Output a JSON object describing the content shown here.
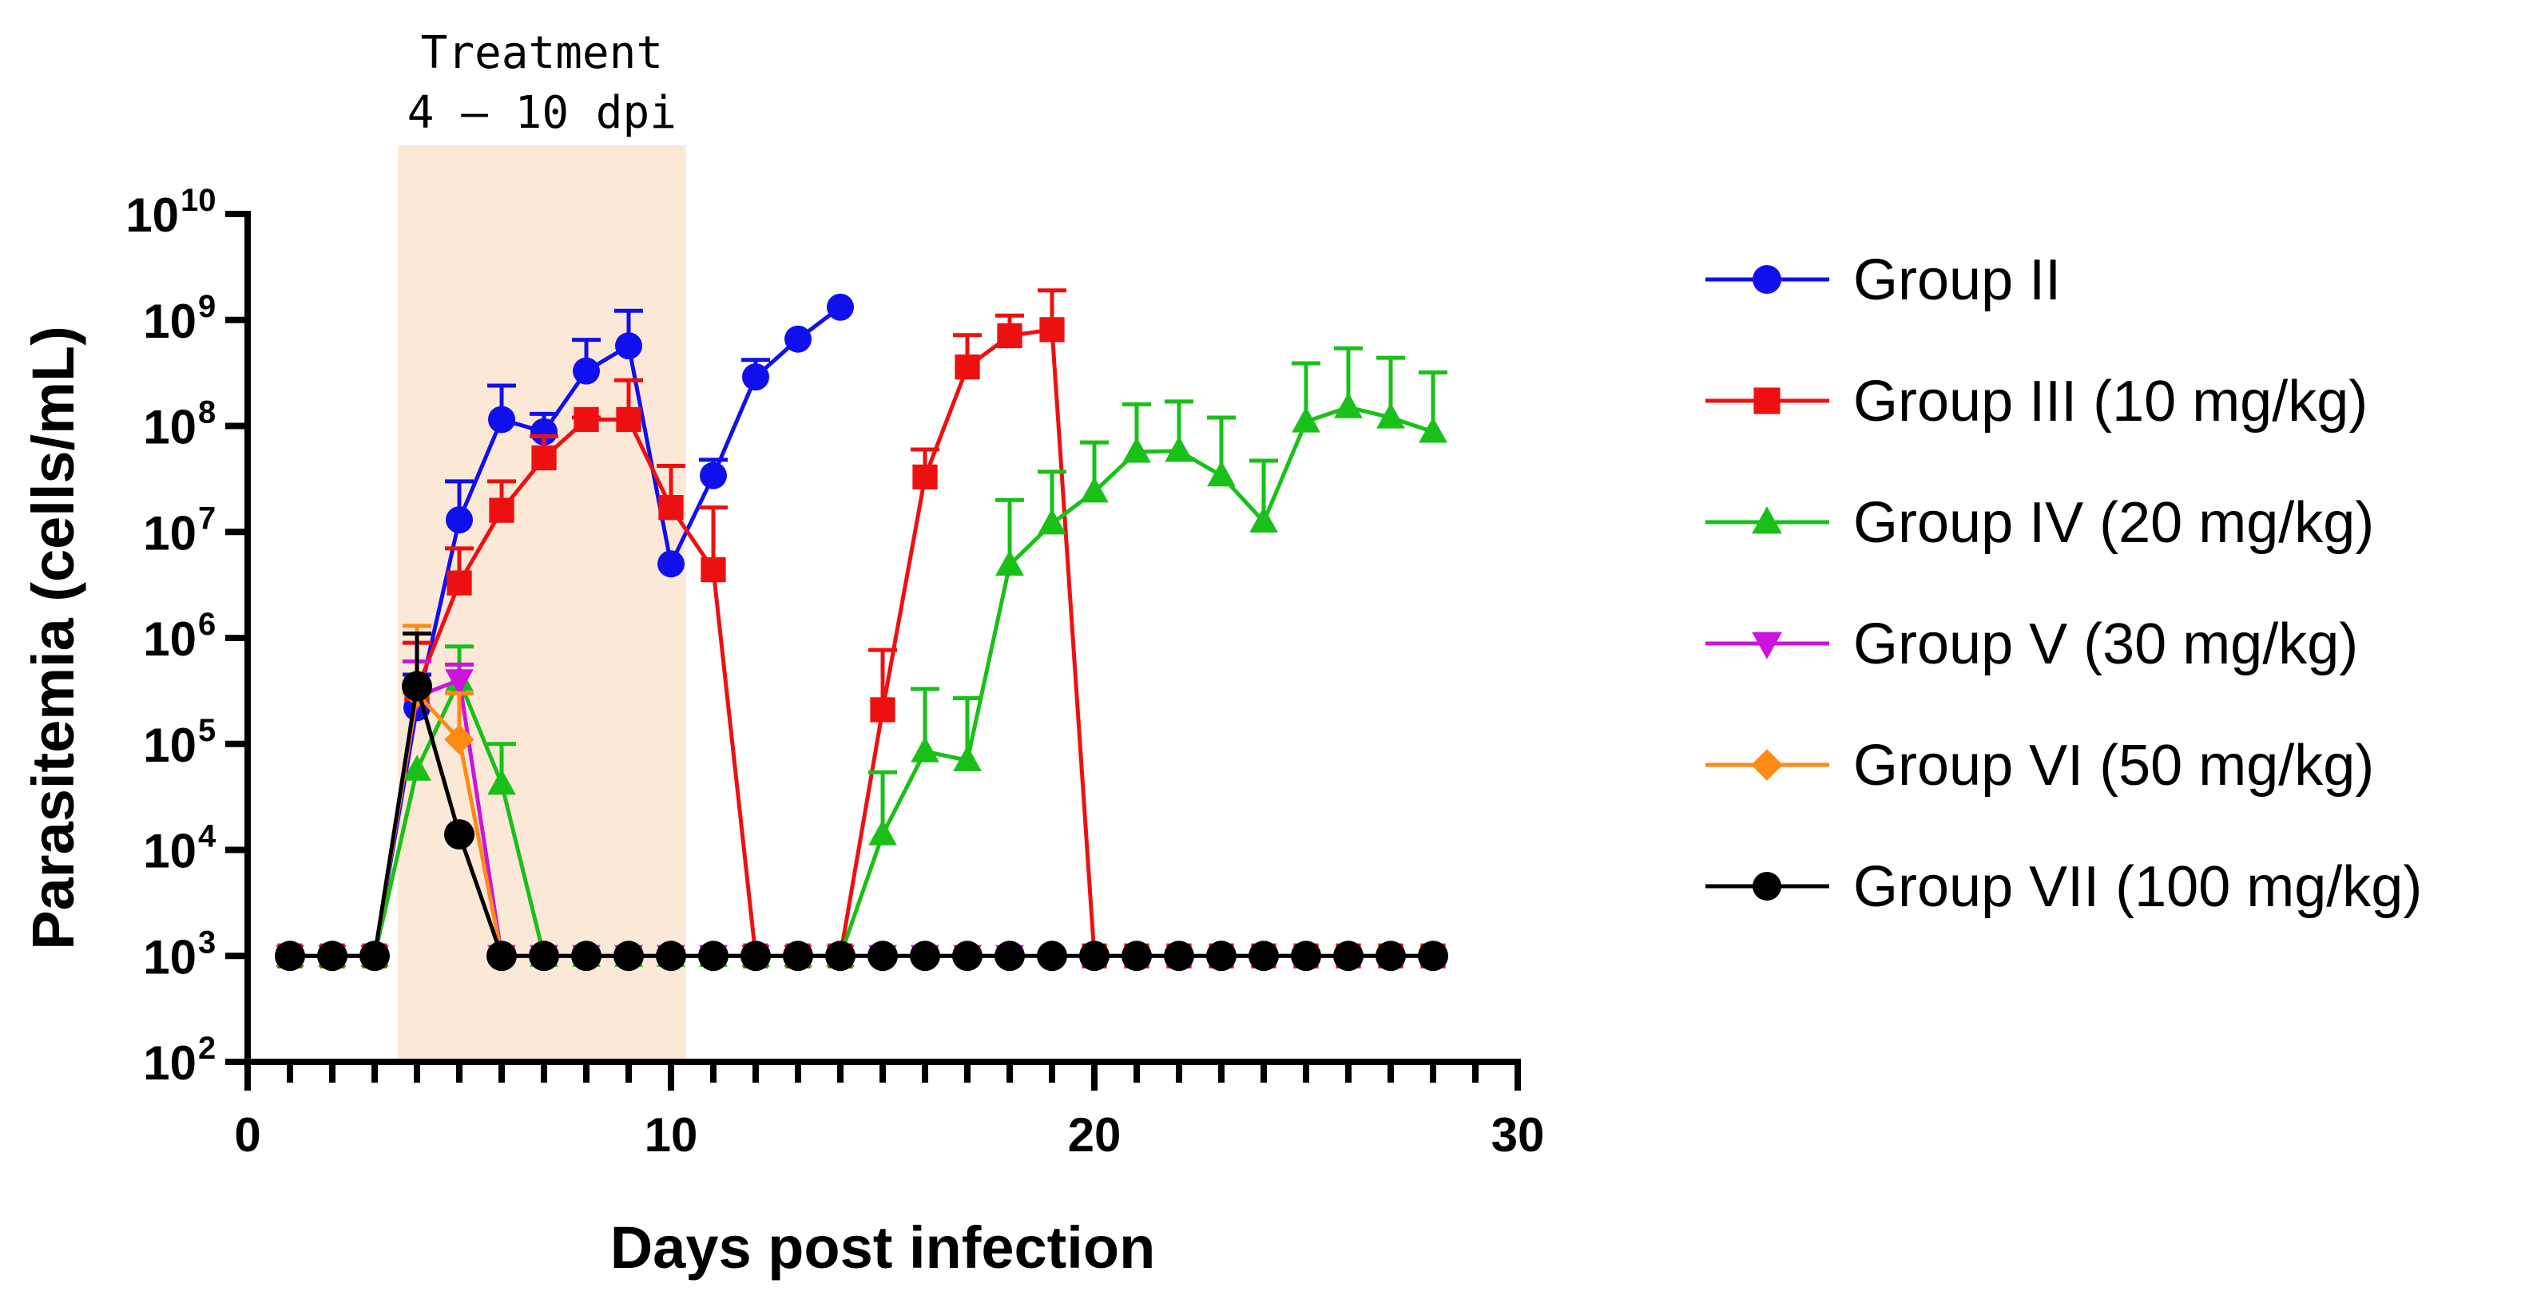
{
  "chart_data": {
    "type": "line",
    "title": "",
    "xlabel": "Days post infection",
    "ylabel": "Parasitemia (cells/mL)",
    "xlim": [
      0,
      30
    ],
    "ylim_log10": [
      2,
      10
    ],
    "yscale": "log10",
    "x_ticks": [
      "0",
      "10",
      "20",
      "30"
    ],
    "y_tick_base": "10",
    "y_tick_exponents": [
      "2",
      "3",
      "4",
      "5",
      "6",
      "7",
      "8",
      "9",
      "10"
    ],
    "annotation": {
      "line1": "Treatment",
      "line2": "4 – 10 dpi",
      "x_start": 3.55,
      "x_end": 10.35,
      "color": "#fce8d6"
    },
    "legend_position": "right",
    "series": [
      {
        "name": "Group II",
        "color": "#1010ee",
        "marker": "circle",
        "x": [
          1,
          2,
          3,
          4,
          5,
          6,
          7,
          8,
          9,
          10,
          11,
          12,
          13,
          14
        ],
        "y": [
          1000,
          1000,
          1000,
          220000,
          13000000,
          115000000,
          88000000,
          330000000,
          570000000,
          5000000,
          34000000,
          290000000,
          660000000,
          1320000000
        ],
        "err": [
          null,
          null,
          null,
          450000,
          30000000,
          240000000,
          130000000,
          650000000,
          1220000000,
          null,
          48000000,
          420000000,
          null,
          null
        ]
      },
      {
        "name": "Group III (10 mg/kg)",
        "color": "#ee1010",
        "marker": "square",
        "x": [
          1,
          2,
          3,
          4,
          5,
          6,
          7,
          8,
          9,
          10,
          11,
          12,
          13,
          14,
          15,
          16,
          17,
          18,
          19,
          20,
          21,
          22,
          23,
          24,
          25,
          26,
          27,
          28
        ],
        "y": [
          1000,
          1000,
          1000,
          330000,
          3300000,
          16000000,
          50000000,
          115000000,
          115000000,
          17000000,
          4400000,
          1000,
          1000,
          1000,
          210000,
          33000000,
          360000000,
          710000000,
          810000000,
          1000,
          1000,
          1000,
          1000,
          1000,
          1000,
          1000,
          1000,
          1000
        ],
        "err": [
          null,
          null,
          null,
          900000,
          7000000,
          30000000,
          80000000,
          120000000,
          270000000,
          42000000,
          17000000,
          null,
          null,
          null,
          770000,
          60000000,
          720000000,
          1100000000,
          1900000000,
          null,
          null,
          null,
          null,
          null,
          null,
          null,
          null,
          null
        ]
      },
      {
        "name": "Group IV (20 mg/kg)",
        "color": "#18c018",
        "marker": "triangle-up",
        "x": [
          1,
          2,
          3,
          4,
          5,
          6,
          7,
          8,
          9,
          10,
          11,
          12,
          13,
          14,
          15,
          16,
          17,
          18,
          19,
          20,
          21,
          22,
          23,
          24,
          25,
          26,
          27,
          28
        ],
        "y": [
          1000,
          1000,
          1000,
          57000,
          400000,
          42000,
          1000,
          1000,
          1000,
          1000,
          1000,
          1000,
          1000,
          1000,
          14000,
          85000,
          70000,
          4900000,
          12000000,
          24000000,
          57000000,
          58000000,
          34000000,
          12500000,
          110000000,
          150000000,
          120000000,
          88000000
        ],
        "err": [
          null,
          null,
          null,
          null,
          830000,
          100000,
          null,
          null,
          null,
          null,
          null,
          null,
          null,
          null,
          54000,
          330000,
          270000,
          20000000,
          37000000,
          70000000,
          160000000,
          170000000,
          120000000,
          47000000,
          390000000,
          540000000,
          440000000,
          320000000
        ]
      },
      {
        "name": "Group V (30 mg/kg)",
        "color": "#cc14dc",
        "marker": "triangle-down",
        "x": [
          1,
          2,
          3,
          4,
          5,
          6,
          7,
          8,
          9,
          10,
          11,
          12,
          13,
          14,
          15,
          16,
          17,
          18
        ],
        "y": [
          1000,
          1000,
          1000,
          280000,
          400000,
          1000,
          1000,
          1000,
          1000,
          1000,
          1000,
          1000,
          1000,
          1000,
          1000,
          1000,
          1000,
          1000
        ],
        "err": [
          null,
          null,
          null,
          600000,
          560000,
          null,
          null,
          null,
          null,
          null,
          null,
          null,
          null,
          null,
          null,
          null,
          null,
          null
        ]
      },
      {
        "name": "Group VI (50 mg/kg)",
        "color": "#ff8a14",
        "marker": "diamond",
        "x": [
          1,
          2,
          3,
          4,
          5,
          6
        ],
        "y": [
          1000,
          1000,
          1000,
          300000,
          110000,
          1000
        ],
        "err": [
          null,
          null,
          null,
          1300000,
          300000,
          null
        ]
      },
      {
        "name": "Group VII (100 mg/kg)",
        "color": "#000000",
        "marker": "circle",
        "x": [
          1,
          2,
          3,
          4,
          5,
          6,
          7,
          8,
          9,
          10,
          11,
          12,
          13,
          14,
          15,
          16,
          17,
          18,
          19,
          20,
          21,
          22,
          23,
          24,
          25,
          26,
          27,
          28
        ],
        "y": [
          1000,
          1000,
          1000,
          350000,
          14000,
          1000,
          1000,
          1000,
          1000,
          1000,
          1000,
          1000,
          1000,
          1000,
          1000,
          1000,
          1000,
          1000,
          1000,
          1000,
          1000,
          1000,
          1000,
          1000,
          1000,
          1000,
          1000,
          1000
        ],
        "err": [
          null,
          null,
          null,
          1100000,
          null,
          null,
          null,
          null,
          null,
          null,
          null,
          null,
          null,
          null,
          null,
          null,
          null,
          null,
          null,
          null,
          null,
          null,
          null,
          null,
          null,
          null,
          null,
          null
        ]
      }
    ]
  }
}
